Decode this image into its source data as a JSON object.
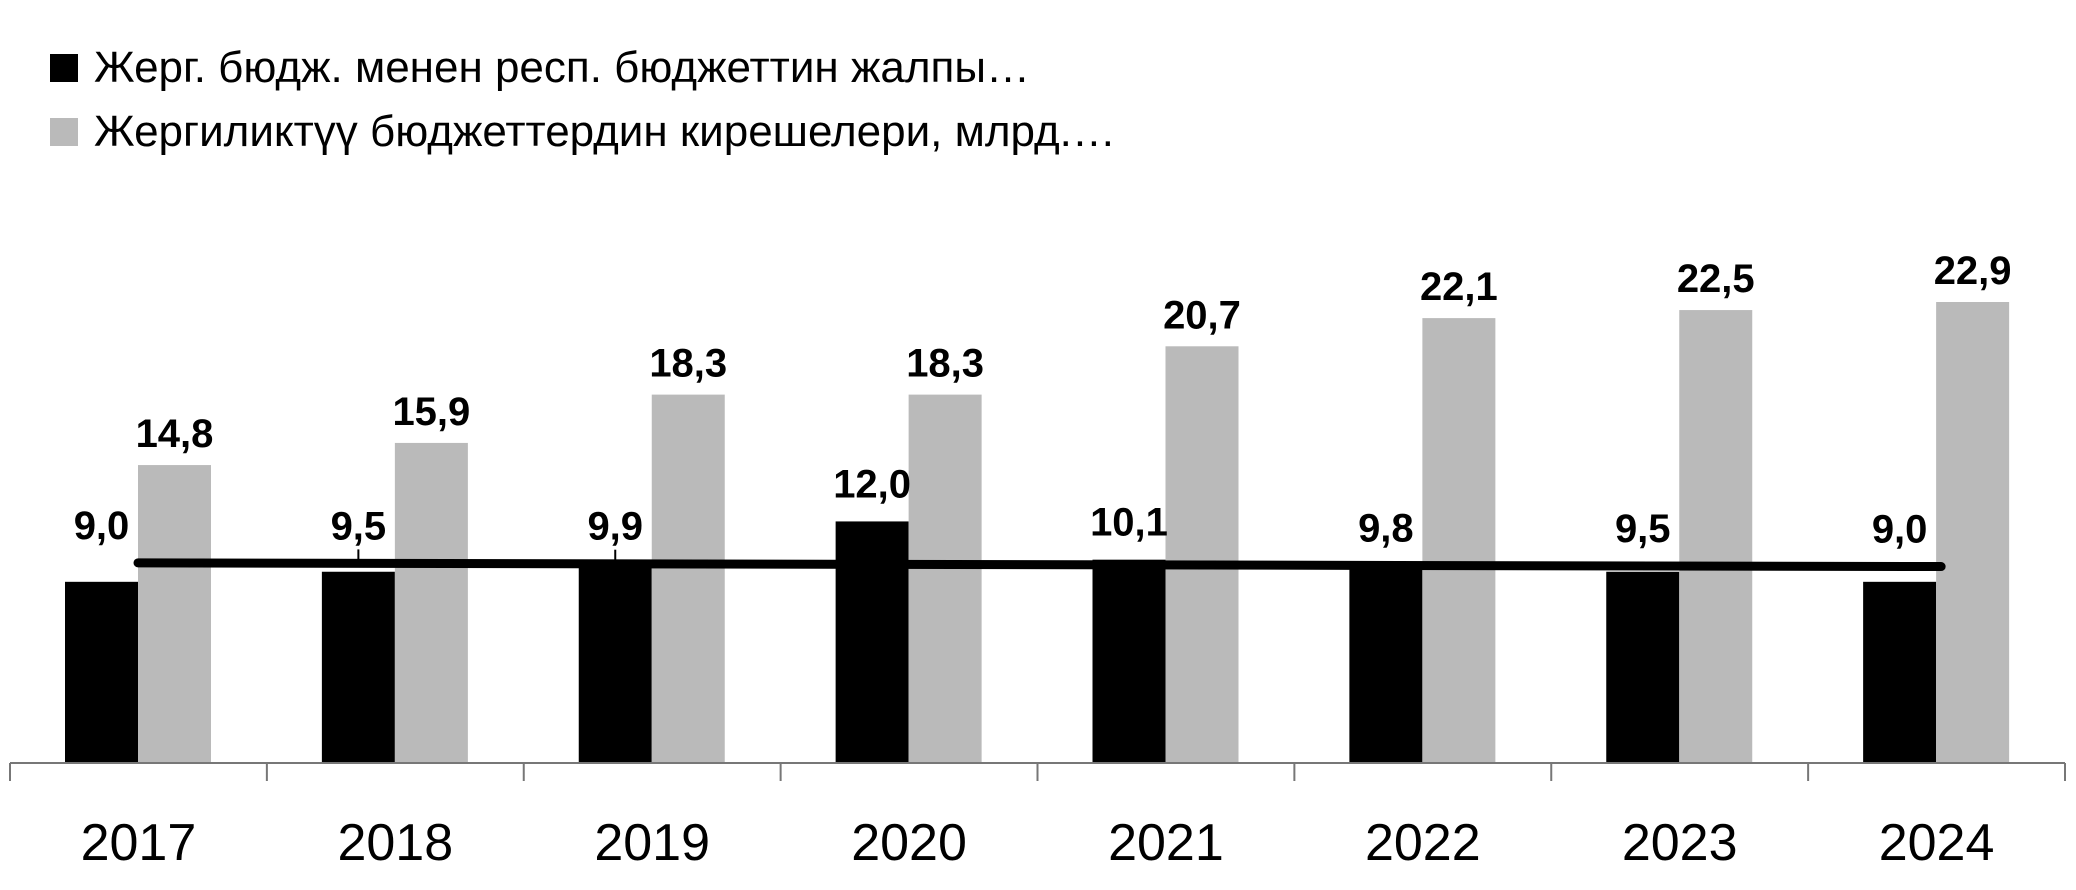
{
  "chart_data": {
    "type": "bar",
    "categories": [
      "2017",
      "2018",
      "2019",
      "2020",
      "2021",
      "2022",
      "2023",
      "2024"
    ],
    "series": [
      {
        "name": "Жерг. бюдж. менен респ. бюджеттин жалпы…",
        "color": "#000000",
        "values": [
          9.0,
          9.5,
          9.9,
          12.0,
          10.1,
          9.8,
          9.5,
          9.0
        ],
        "labels": [
          "9,0",
          "9,5",
          "9,9",
          "12,0",
          "10,1",
          "9,8",
          "9,5",
          "9,0"
        ]
      },
      {
        "name": "Жергиликтүү бюджеттердин кирешелери, млрд.…",
        "color": "#bababa",
        "values": [
          14.8,
          15.9,
          18.3,
          18.3,
          20.7,
          22.1,
          22.5,
          22.9
        ],
        "labels": [
          "14,8",
          "15,9",
          "18,3",
          "18,3",
          "20,7",
          "22,1",
          "22,5",
          "22,9"
        ]
      }
    ],
    "trendline": {
      "series": 0,
      "type": "linear",
      "color": "#000000"
    },
    "ylim": [
      0,
      23.5
    ],
    "grid": false,
    "legend_position": "top-left"
  }
}
